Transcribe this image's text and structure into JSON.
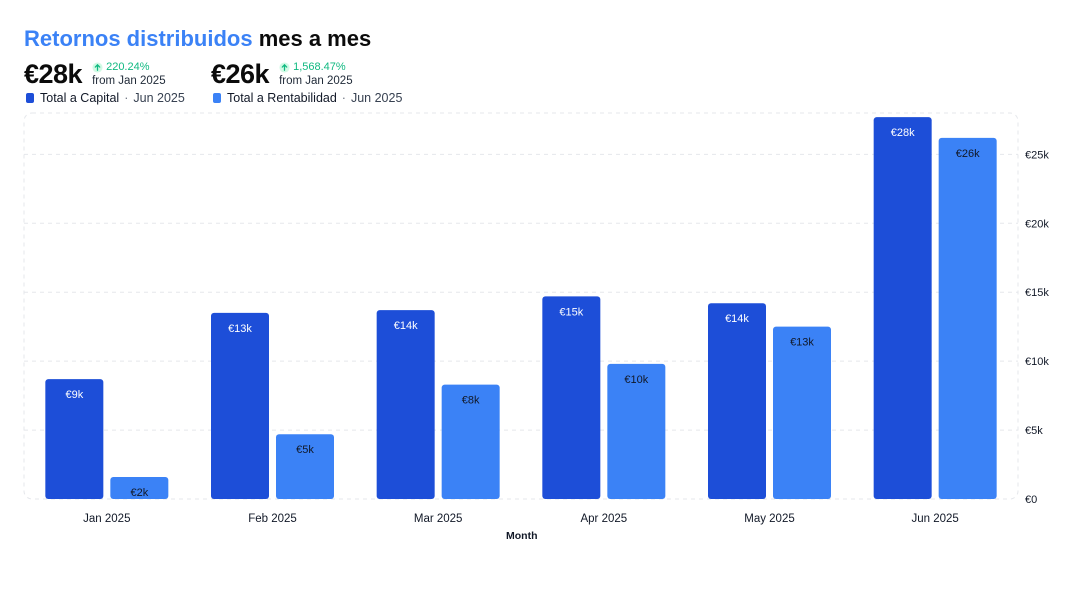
{
  "title": {
    "accent": "Retornos distribuidos",
    "rest": "mes a mes"
  },
  "kpis": [
    {
      "value": "€28k",
      "change": "220.24%",
      "from": "from Jan 2025",
      "legend": "Total a Capital",
      "period": "Jun 2025"
    },
    {
      "value": "€26k",
      "change": "1,568.47%",
      "from": "from Jan 2025",
      "legend": "Total a Rentabilidad",
      "period": "Jun 2025"
    }
  ],
  "colors": {
    "capital": "#1d4ed8",
    "rentabilidad": "#3b82f6",
    "accent": "#3b82f6",
    "positive": "#10b981",
    "grid": "#e5e7eb"
  },
  "chart_data": {
    "type": "bar",
    "xlabel": "Month",
    "ylabel": "",
    "categories": [
      "Jan 2025",
      "Feb 2025",
      "Mar 2025",
      "Apr 2025",
      "May 2025",
      "Jun 2025"
    ],
    "series": [
      {
        "name": "Total a Capital",
        "values": [
          8700,
          13500,
          13700,
          14700,
          14200,
          27700
        ],
        "labels": [
          "€9k",
          "€13k",
          "€14k",
          "€15k",
          "€14k",
          "€28k"
        ]
      },
      {
        "name": "Total a Rentabilidad",
        "values": [
          1600,
          4700,
          8300,
          9800,
          12500,
          26200
        ],
        "labels": [
          "€2k",
          "€5k",
          "€8k",
          "€10k",
          "€13k",
          "€26k"
        ]
      }
    ],
    "ylim": [
      0,
      28000
    ],
    "yticks": [
      0,
      5000,
      10000,
      15000,
      20000,
      25000
    ],
    "ytick_labels": [
      "€0",
      "€5k",
      "€10k",
      "€15k",
      "€20k",
      "€25k"
    ],
    "grid": true,
    "y_axis_side": "right"
  }
}
